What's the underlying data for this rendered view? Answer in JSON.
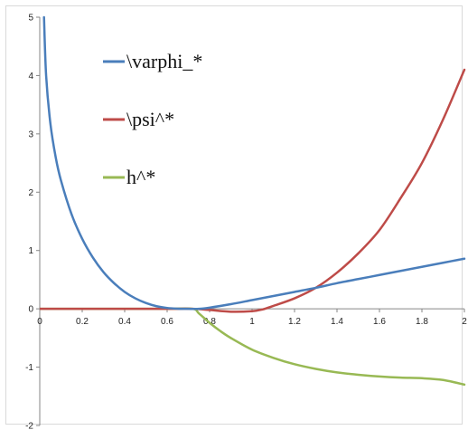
{
  "chart_data": {
    "type": "line",
    "xlim": [
      0,
      2
    ],
    "ylim": [
      -2,
      5
    ],
    "x_ticks": [
      "0",
      "0.2",
      "0.4",
      "0.6",
      "0.8",
      "1",
      "1.2",
      "1.4",
      "1.6",
      "1.8",
      "2"
    ],
    "y_ticks": [
      "-2",
      "-1",
      "0",
      "1",
      "2",
      "3",
      "4",
      "5"
    ],
    "grid": false,
    "legend_position": "top-center",
    "series": [
      {
        "name": "\\varphi_*",
        "color": "#4a7ebb",
        "x": [
          0.02,
          0.03,
          0.05,
          0.075,
          0.1,
          0.15,
          0.2,
          0.25,
          0.3,
          0.35,
          0.4,
          0.45,
          0.5,
          0.55,
          0.6,
          0.65,
          0.7,
          0.75,
          0.8,
          0.9,
          1.0,
          1.1,
          1.2,
          1.3,
          1.4,
          1.5,
          1.6,
          1.7,
          1.8,
          1.9,
          2.0
        ],
        "y": [
          5.0,
          4.0,
          3.18,
          2.6,
          2.2,
          1.62,
          1.2,
          0.88,
          0.63,
          0.44,
          0.29,
          0.18,
          0.1,
          0.045,
          0.015,
          0.003,
          0.0,
          0.0,
          0.02,
          0.08,
          0.15,
          0.22,
          0.29,
          0.36,
          0.44,
          0.51,
          0.58,
          0.65,
          0.72,
          0.79,
          0.86
        ]
      },
      {
        "name": "\\psi^*",
        "color": "#be4b48",
        "x": [
          0.0,
          0.2,
          0.4,
          0.6,
          0.72,
          0.8,
          0.9,
          1.0,
          1.05,
          1.1,
          1.2,
          1.3,
          1.4,
          1.5,
          1.6,
          1.7,
          1.8,
          1.9,
          2.0
        ],
        "y": [
          0.0,
          0.0,
          0.0,
          0.0,
          0.0,
          -0.02,
          -0.05,
          -0.04,
          -0.01,
          0.05,
          0.18,
          0.36,
          0.62,
          0.95,
          1.35,
          1.9,
          2.5,
          3.25,
          4.1
        ]
      },
      {
        "name": "h^*",
        "color": "#98b954",
        "x": [
          0.0,
          0.2,
          0.4,
          0.6,
          0.72,
          0.75,
          0.8,
          0.85,
          0.9,
          1.0,
          1.1,
          1.2,
          1.3,
          1.4,
          1.5,
          1.6,
          1.7,
          1.8,
          1.9,
          2.0
        ],
        "y": [
          0.0,
          0.0,
          0.0,
          0.0,
          0.0,
          -0.08,
          -0.24,
          -0.38,
          -0.5,
          -0.7,
          -0.84,
          -0.95,
          -1.03,
          -1.09,
          -1.13,
          -1.16,
          -1.18,
          -1.19,
          -1.22,
          -1.3
        ]
      }
    ]
  }
}
